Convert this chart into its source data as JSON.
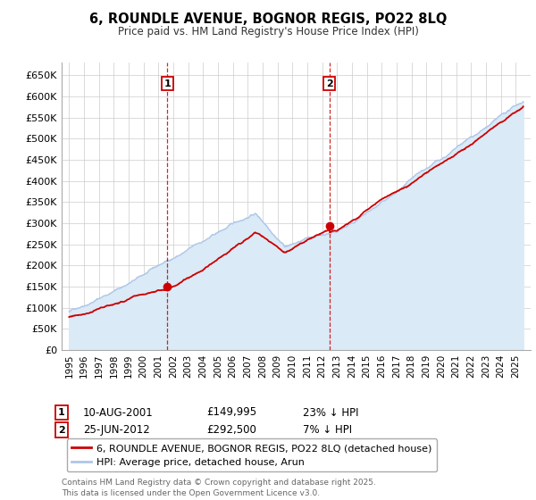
{
  "title": "6, ROUNDLE AVENUE, BOGNOR REGIS, PO22 8LQ",
  "subtitle": "Price paid vs. HM Land Registry's House Price Index (HPI)",
  "hpi_color": "#aec6e8",
  "hpi_fill_color": "#daeaf6",
  "price_color": "#cc0000",
  "dashed_line_color": "#cc0000",
  "background_color": "#ffffff",
  "grid_color": "#cccccc",
  "ylim": [
    0,
    680000
  ],
  "yticks": [
    0,
    50000,
    100000,
    150000,
    200000,
    250000,
    300000,
    350000,
    400000,
    450000,
    500000,
    550000,
    600000,
    650000
  ],
  "ytick_labels": [
    "£0",
    "£50K",
    "£100K",
    "£150K",
    "£200K",
    "£250K",
    "£300K",
    "£350K",
    "£400K",
    "£450K",
    "£500K",
    "£550K",
    "£600K",
    "£650K"
  ],
  "xlim_min": 1994.5,
  "xlim_max": 2026.0,
  "sale1": {
    "date_num": 2001.61,
    "price": 149995,
    "label": "1",
    "date_str": "10-AUG-2001",
    "price_str": "£149,995",
    "pct": "23% ↓ HPI"
  },
  "sale2": {
    "date_num": 2012.48,
    "price": 292500,
    "label": "2",
    "date_str": "25-JUN-2012",
    "price_str": "£292,500",
    "pct": "7% ↓ HPI"
  },
  "legend_label_red": "6, ROUNDLE AVENUE, BOGNOR REGIS, PO22 8LQ (detached house)",
  "legend_label_blue": "HPI: Average price, detached house, Arun",
  "footer": "Contains HM Land Registry data © Crown copyright and database right 2025.\nThis data is licensed under the Open Government Licence v3.0.",
  "xtick_years": [
    1995,
    1996,
    1997,
    1998,
    1999,
    2000,
    2001,
    2002,
    2003,
    2004,
    2005,
    2006,
    2007,
    2008,
    2009,
    2010,
    2011,
    2012,
    2013,
    2014,
    2015,
    2016,
    2017,
    2018,
    2019,
    2020,
    2021,
    2022,
    2023,
    2024,
    2025
  ]
}
